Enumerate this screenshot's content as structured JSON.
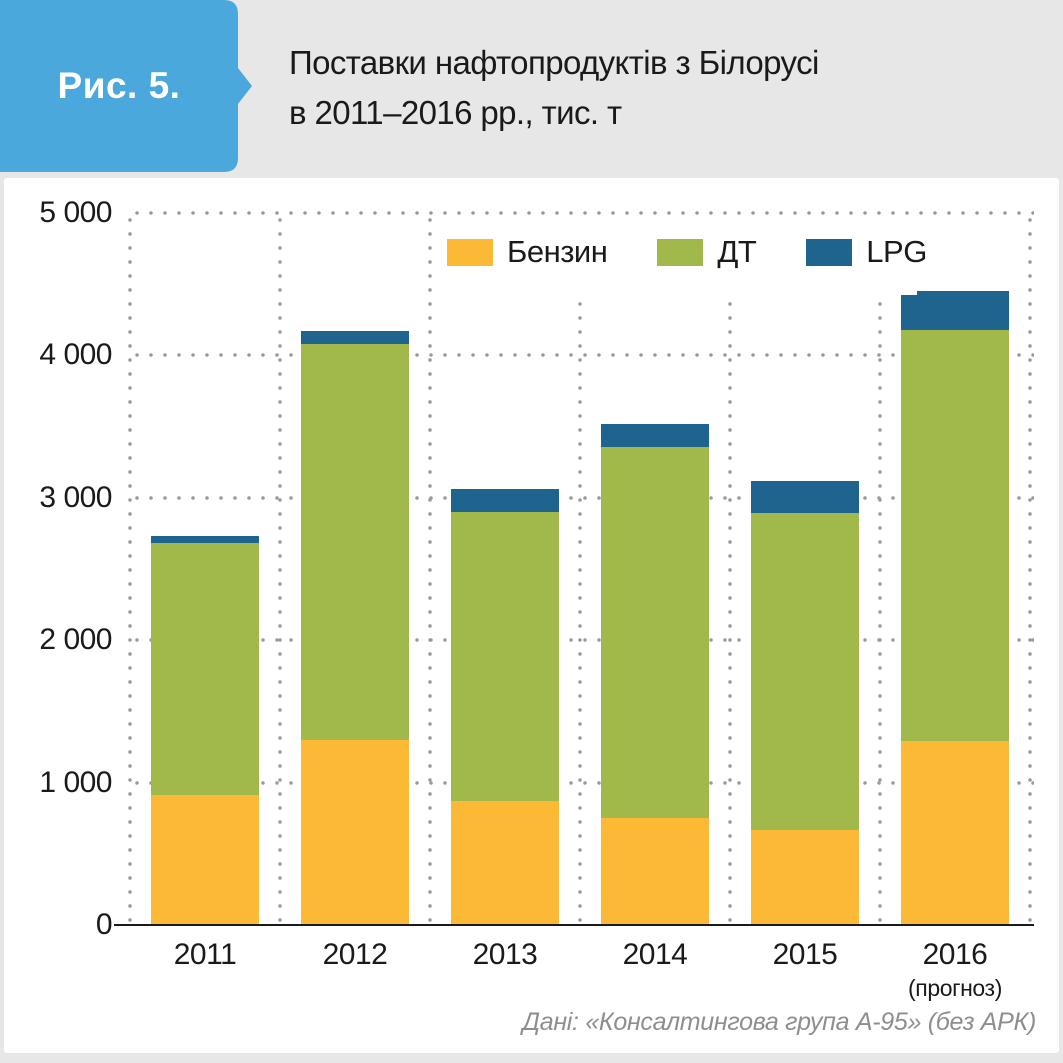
{
  "figure_label": "Рис. 5.",
  "title_line1": "Поставки нафтопродуктів з Білорусі",
  "title_line2": "в 2011–2016 рр., тис. т",
  "source": "Дані: «Консалтингова група А-95» (без АРК)",
  "colors": {
    "background": "#e7e7e7",
    "card": "#ffffff",
    "badge_blue": "#4aa8dc",
    "text": "#1a1a1a",
    "grid_dot": "#9a9a9a",
    "source_text": "#8e8e8e",
    "benzin": "#fbb935",
    "dt": "#a0b94a",
    "lpg": "#1f648f"
  },
  "chart_data": {
    "type": "bar",
    "stacked": true,
    "title": "Поставки нафтопродуктів з Білорусі в 2011–2016 рр., тис. т",
    "categories": [
      "2011",
      "2012",
      "2013",
      "2014",
      "2015",
      "2016"
    ],
    "last_category_note": "(прогноз)",
    "series": [
      {
        "name": "Бензин",
        "color": "#fbb935",
        "values": [
          910,
          1300,
          870,
          750,
          670,
          1290
        ]
      },
      {
        "name": "ДТ",
        "color": "#a0b94a",
        "values": [
          1770,
          2780,
          2030,
          2610,
          2220,
          2890
        ]
      },
      {
        "name": "LPG",
        "color": "#1f648f",
        "values": [
          50,
          90,
          160,
          160,
          230,
          270
        ]
      }
    ],
    "totals": [
      2730,
      4170,
      3060,
      3520,
      3120,
      4450
    ],
    "ylim": [
      0,
      5000
    ],
    "yticks": [
      0,
      1000,
      2000,
      3000,
      4000,
      5000
    ],
    "ytick_labels": [
      "0",
      "1 000",
      "2 000",
      "3 000",
      "4 000",
      "5 000"
    ],
    "grid": "dotted",
    "legend_position": "top"
  }
}
